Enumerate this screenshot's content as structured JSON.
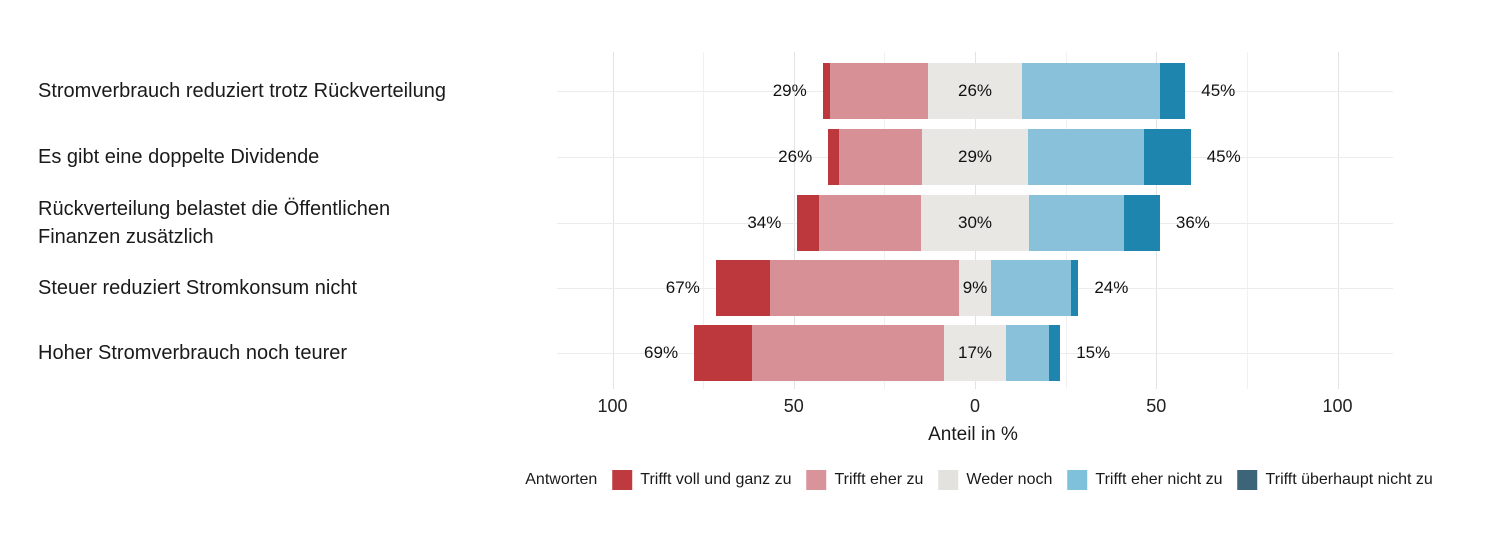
{
  "page": {
    "background": "#ffffff"
  },
  "chart_data": {
    "type": "diverging_stacked_bar",
    "orientation": "horizontal",
    "xlabel": "Anteil in %",
    "x_axis_range": [
      -114,
      116
    ],
    "x_ticks": [
      {
        "value": -100,
        "label": "100"
      },
      {
        "value": -50,
        "label": "50"
      },
      {
        "value": 0,
        "label": "0"
      },
      {
        "value": 50,
        "label": "50"
      },
      {
        "value": 100,
        "label": "100"
      }
    ],
    "x_minor_ticks": [
      -75,
      -25,
      25,
      75
    ],
    "categories": [
      [
        "Stromverbrauch reduziert trotz Rückverteilung"
      ],
      [
        "Es gibt eine doppelte Dividende"
      ],
      [
        "Rückverteilung belastet die Öffentlichen",
        "Finanzen zusätzlich"
      ],
      [
        "Steuer reduziert Stromkonsum nicht"
      ],
      [
        "Hoher Stromverbrauch noch teurer"
      ]
    ],
    "series": [
      {
        "name": "Trifft voll und ganz zu",
        "color": "#bd383c",
        "values": [
          2,
          3,
          6,
          15,
          16
        ]
      },
      {
        "name": "Trifft eher zu",
        "color": "#d79096",
        "values": [
          27,
          23,
          28,
          52,
          53
        ]
      },
      {
        "name": "Weder noch",
        "color": "#e8e7e4",
        "values": [
          26,
          29,
          30,
          9,
          17
        ]
      },
      {
        "name": "Trifft eher nicht zu",
        "color": "#8ac1da",
        "values": [
          38,
          32,
          26,
          22,
          12
        ]
      },
      {
        "name": "Trifft überhaupt nicht zu",
        "color": "#1e86ae",
        "values": [
          7,
          13,
          10,
          2,
          3
        ]
      }
    ],
    "neutral_series_index": 2,
    "bar_labels": {
      "left": [
        "29%",
        "26%",
        "34%",
        "67%",
        "69%"
      ],
      "middle": [
        "26%",
        "29%",
        "30%",
        "9%",
        "17%"
      ],
      "right": [
        "45%",
        "45%",
        "36%",
        "24%",
        "15%"
      ]
    },
    "legend": {
      "title": "Antworten",
      "position": "bottom",
      "items": [
        {
          "label": "Trifft voll und ganz zu",
          "color": "#bf3a3e"
        },
        {
          "label": "Trifft eher zu",
          "color": "#d9939b"
        },
        {
          "label": "Weder noch",
          "color": "#e3e2df"
        },
        {
          "label": "Trifft eher nicht zu",
          "color": "#7fc0db"
        },
        {
          "label": "Trifft überhaupt nicht zu",
          "color": "#3d6478"
        }
      ]
    },
    "grid": {
      "major_color": "#e3e3e3",
      "minor_color": "#f1f1f1",
      "horizontal_color": "#ececec"
    }
  }
}
